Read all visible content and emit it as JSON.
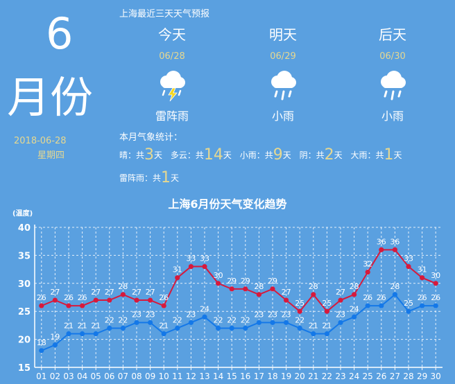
{
  "header": {
    "month_number": "6",
    "month_label": "月份",
    "date": "2018-06-28",
    "weekday": "星期四"
  },
  "forecast": {
    "title": "上海最近三天天气预报",
    "days": [
      {
        "name": "今天",
        "date": "06/28",
        "condition": "雷阵雨",
        "icon": "thunderstorm-icon"
      },
      {
        "name": "明天",
        "date": "06/29",
        "condition": "小雨",
        "icon": "light-rain-icon"
      },
      {
        "name": "后天",
        "date": "06/30",
        "condition": "小雨",
        "icon": "light-rain-icon"
      }
    ]
  },
  "stats": {
    "title": "本月气象统计：",
    "items": [
      {
        "label": "晴：共",
        "count": "3",
        "unit": "天"
      },
      {
        "label": "多云：共",
        "count": "14",
        "unit": "天"
      },
      {
        "label": "小雨：共",
        "count": "9",
        "unit": "天"
      },
      {
        "label": "阴：共",
        "count": "2",
        "unit": "天"
      },
      {
        "label": "大雨：共",
        "count": "1",
        "unit": "天"
      },
      {
        "label": "雷阵雨：共",
        "count": "1",
        "unit": "天"
      }
    ]
  },
  "colors": {
    "background": "#5aa0e0",
    "high_series": "#d7193c",
    "low_series": "#1478e8",
    "accent_text": "#e6d890"
  },
  "chart_data": {
    "type": "line",
    "title": "上海6月份天气变化趋势",
    "ylabel": "(温度)",
    "xlabel": "",
    "ylim": [
      15,
      40
    ],
    "yticks": [
      15,
      20,
      25,
      30,
      35,
      40
    ],
    "grid": true,
    "categories": [
      "01",
      "02",
      "03",
      "04",
      "05",
      "06",
      "07",
      "08",
      "09",
      "10",
      "11",
      "12",
      "13",
      "14",
      "15",
      "16",
      "17",
      "18",
      "19",
      "20",
      "21",
      "22",
      "23",
      "24",
      "25",
      "26",
      "27",
      "28",
      "29",
      "30"
    ],
    "series": [
      {
        "values": [
          26,
          27,
          26,
          26,
          27,
          27,
          28,
          27,
          27,
          26,
          31,
          33,
          33,
          30,
          29,
          29,
          28,
          29,
          27,
          25,
          28,
          25,
          27,
          28,
          32,
          36,
          36,
          33,
          31,
          30
        ]
      },
      {
        "values": [
          18,
          19,
          21,
          21,
          21,
          22,
          22,
          23,
          23,
          21,
          22,
          23,
          24,
          22,
          22,
          22,
          23,
          23,
          23,
          22,
          21,
          21,
          23,
          24,
          26,
          26,
          28,
          25,
          26,
          26
        ]
      }
    ]
  }
}
